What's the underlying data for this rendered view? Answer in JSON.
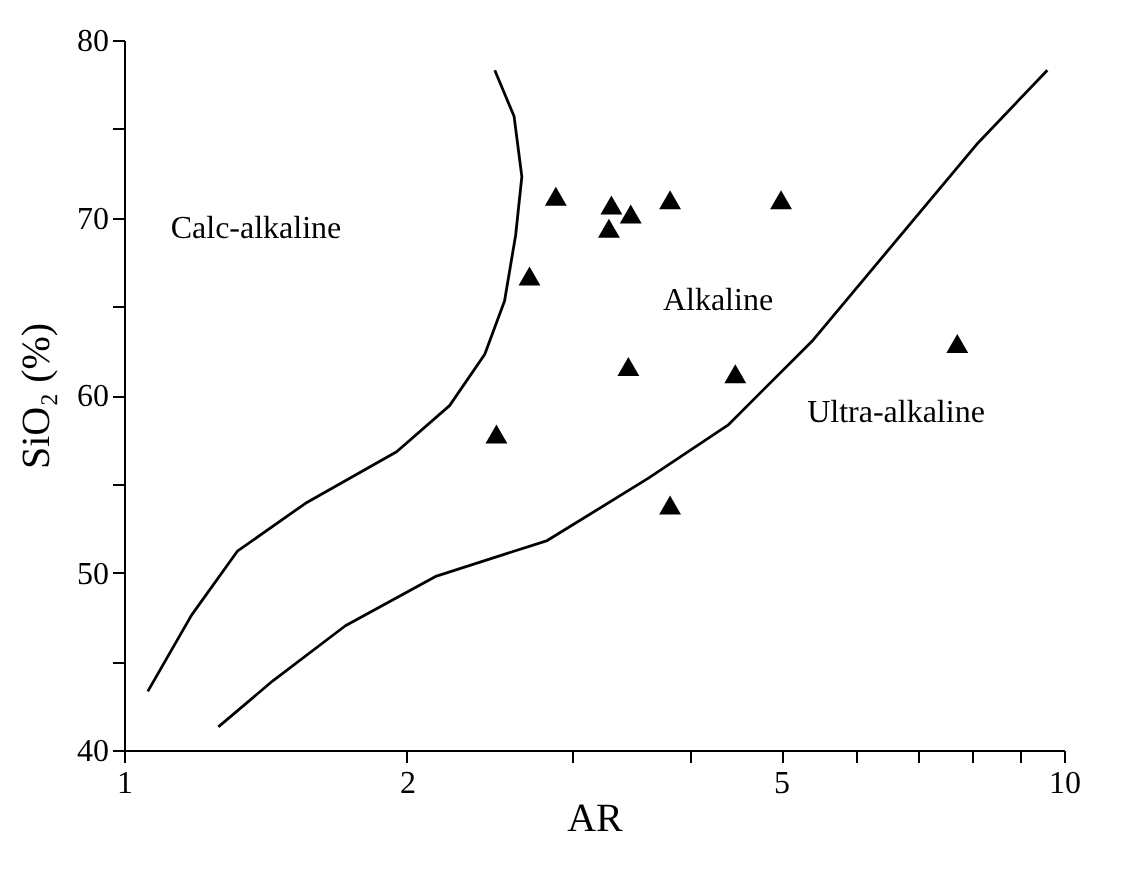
{
  "chart_data": {
    "type": "scatter",
    "xlabel": "AR",
    "ylabel": "SiO₂ (%)",
    "log": "x",
    "grid": false,
    "marker": "triangle",
    "xlim": [
      1,
      10
    ],
    "xticks": [
      1,
      2,
      {
        "value": 3,
        "label": null
      },
      {
        "value": 4,
        "label": null
      },
      5,
      {
        "value": 6,
        "label": null
      },
      {
        "value": 7,
        "label": null
      },
      {
        "value": 8,
        "label": null
      },
      {
        "value": 9,
        "label": null
      },
      10
    ],
    "ylim": [
      40,
      80
    ],
    "yticks": [
      40,
      {
        "value": 45,
        "label": null
      },
      50,
      {
        "value": 55,
        "label": null
      },
      60,
      {
        "value": 65,
        "label": null
      },
      70,
      {
        "value": 75,
        "label": null
      },
      80
    ],
    "series": [
      {
        "type": "line",
        "color": "#000000",
        "marker": "none",
        "x": [
          1.06,
          1.18,
          1.32,
          1.56,
          1.95,
          2.22,
          2.42,
          2.54,
          2.61,
          2.65,
          2.6,
          2.48
        ],
        "values": [
          43.3,
          47.6,
          51.2,
          53.9,
          56.8,
          59.4,
          62.3,
          65.3,
          69,
          72.3,
          75.7,
          78.3
        ]
      },
      {
        "type": "line",
        "color": "#000000",
        "marker": "none",
        "x": [
          1.26,
          1.44,
          1.72,
          2.15,
          2.82,
          3.61,
          4.39,
          5.41,
          6.37,
          8.1,
          9.6
        ],
        "values": [
          41.3,
          43.9,
          47,
          49.8,
          51.8,
          55.3,
          58.3,
          63.1,
          67.6,
          74.2,
          78.3
        ]
      },
      {
        "color": "#000000",
        "x": [
          2.88,
          3.3,
          3.46,
          3.28,
          3.81,
          5.0,
          2.7,
          3.44,
          4.47,
          2.49,
          3.81,
          7.7
        ],
        "values": [
          71.2,
          70.7,
          70.2,
          69.4,
          71,
          71,
          66.7,
          61.6,
          61.2,
          57.8,
          53.8,
          62.9
        ]
      }
    ],
    "annotations": [
      "Calc-alkaline",
      "Alkaline",
      "Ultra-alkaline"
    ]
  }
}
